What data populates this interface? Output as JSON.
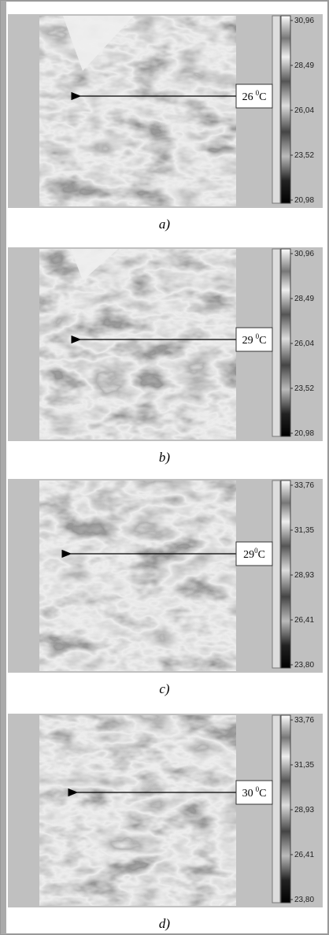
{
  "panels": [
    {
      "label": "a)",
      "annotation": {
        "temp": "26",
        "sup": "0",
        "unit": "C"
      },
      "scale": [
        "30,96",
        "28,49",
        "26,04",
        "23,52",
        "20,98"
      ]
    },
    {
      "label": "b)",
      "annotation": {
        "temp": "29",
        "sup": "0",
        "unit": "C"
      },
      "scale": [
        "30,96",
        "28,49",
        "26,04",
        "23,52",
        "20,98"
      ]
    },
    {
      "label": "c)",
      "annotation": {
        "temp": "29",
        "sup": "0",
        "unit": "C"
      },
      "scale": [
        "33,76",
        "31,35",
        "28,93",
        "26,41",
        "23,80"
      ]
    },
    {
      "label": "d)",
      "annotation": {
        "temp": "30",
        "sup": "0",
        "unit": "C"
      },
      "scale": [
        "33,76",
        "31,35",
        "28,93",
        "26,41",
        "23,80"
      ]
    }
  ]
}
